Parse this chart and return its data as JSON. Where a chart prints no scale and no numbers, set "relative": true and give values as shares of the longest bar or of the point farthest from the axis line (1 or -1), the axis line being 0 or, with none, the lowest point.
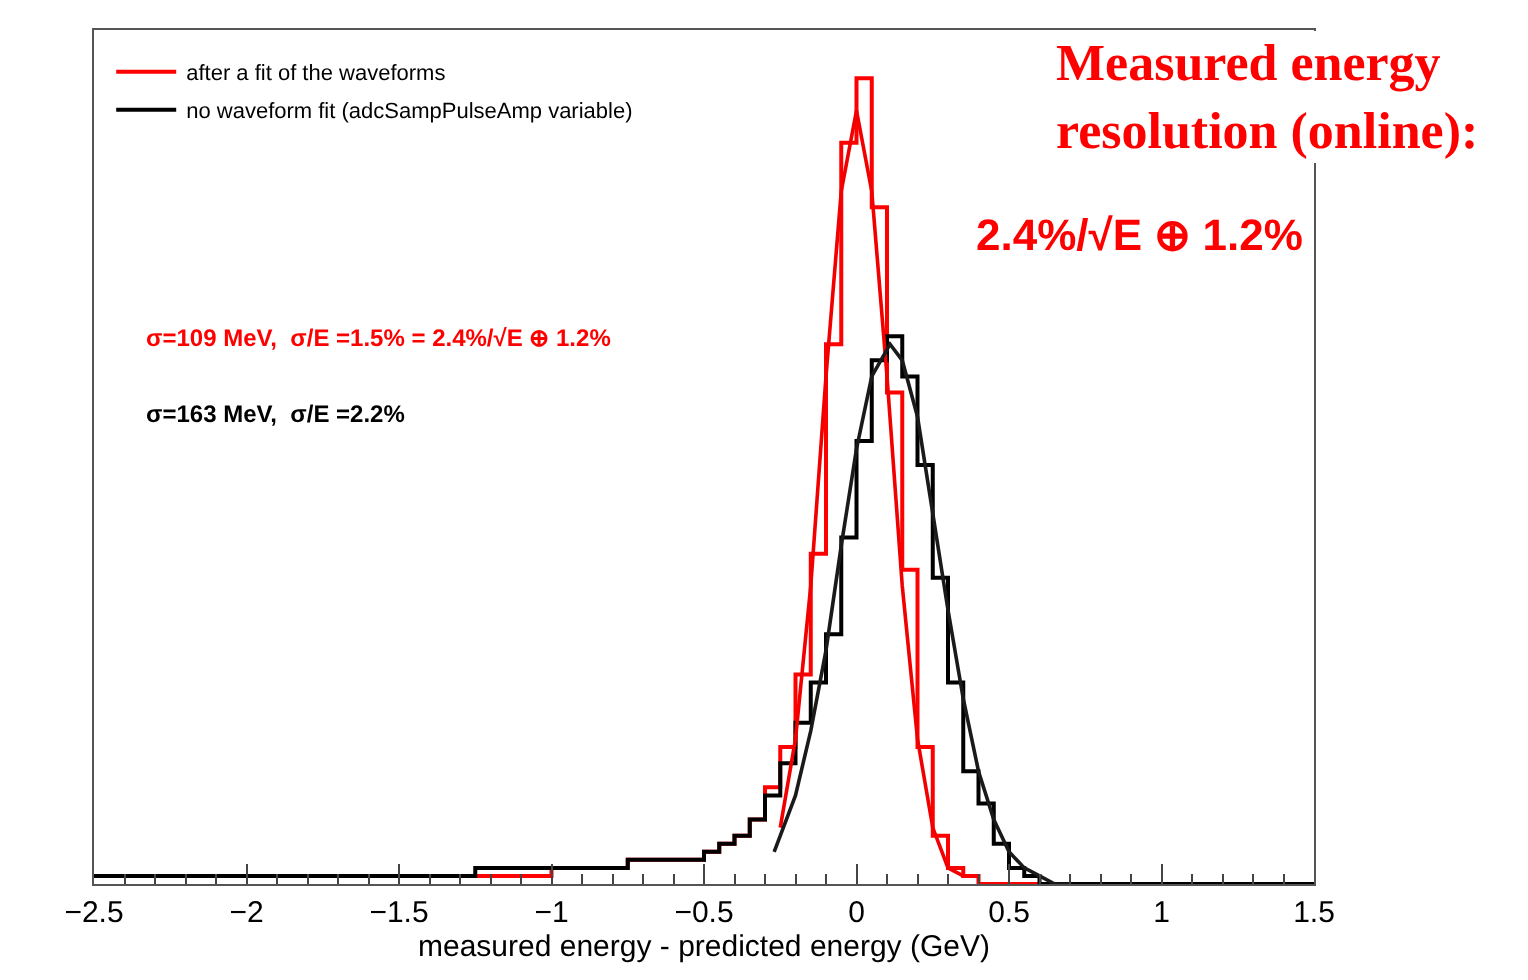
{
  "chart_data": {
    "type": "histogram",
    "title": "Measured energy resolution (online):",
    "xlabel": "measured energy - predicted energy (GeV)",
    "relative": true,
    "bins": [
      -2.5,
      -2.25,
      -2.0,
      -1.75,
      -1.5,
      -1.25,
      -1.0,
      -0.75,
      -0.5,
      -0.45,
      -0.4,
      -0.35,
      -0.3,
      -0.25,
      -0.2,
      -0.15,
      -0.1,
      -0.05,
      0.0,
      0.05,
      0.1,
      0.15,
      0.2,
      0.25,
      0.3,
      0.35,
      0.4,
      0.45,
      0.5,
      0.55,
      0.6,
      0.65,
      0.7,
      0.75,
      0.8,
      1.15,
      1.5
    ],
    "series": [
      {
        "name": "after a fit of the waveforms",
        "color": "#ff0000",
        "values": [
          0.01,
          0.01,
          0.01,
          0.01,
          0.01,
          0.01,
          0.02,
          0.03,
          0.04,
          0.05,
          0.06,
          0.08,
          0.12,
          0.17,
          0.26,
          0.41,
          0.67,
          0.92,
          1,
          0.84,
          0.61,
          0.39,
          0.17,
          0.06,
          0.02,
          0.01,
          0,
          0,
          0,
          0,
          0,
          0,
          0,
          0,
          0,
          0
        ]
      },
      {
        "name": "no waveform fit (adcSampPulseAmp variable)",
        "color": "#000000",
        "values": [
          0.01,
          0.01,
          0.01,
          0.01,
          0.01,
          0.02,
          0.02,
          0.03,
          0.04,
          0.05,
          0.06,
          0.08,
          0.11,
          0.15,
          0.2,
          0.25,
          0.31,
          0.43,
          0.55,
          0.65,
          0.68,
          0.63,
          0.52,
          0.38,
          0.25,
          0.14,
          0.1,
          0.05,
          0.02,
          0.01,
          0,
          0,
          0,
          0,
          0,
          0
        ]
      },
      {
        "type": "line",
        "color": "#f20000",
        "x": [
          -0.25,
          -0.2,
          -0.15,
          -0.1,
          -0.05,
          0.0,
          0.05,
          0.1,
          0.15,
          0.2,
          0.25,
          0.3,
          0.35
        ],
        "values": [
          0.07,
          0.18,
          0.37,
          0.63,
          0.86,
          0.96,
          0.86,
          0.63,
          0.37,
          0.18,
          0.07,
          0.02,
          0.01
        ]
      },
      {
        "type": "line",
        "color": "#1a1a1a",
        "x": [
          -0.27,
          -0.2,
          -0.15,
          -0.1,
          -0.05,
          0.0,
          0.05,
          0.11,
          0.15,
          0.2,
          0.25,
          0.3,
          0.35,
          0.4,
          0.45,
          0.5,
          0.55,
          0.6,
          0.65,
          0.7
        ],
        "values": [
          0.04,
          0.11,
          0.19,
          0.29,
          0.42,
          0.54,
          0.63,
          0.67,
          0.65,
          0.58,
          0.46,
          0.34,
          0.23,
          0.14,
          0.08,
          0.04,
          0.02,
          0.01,
          0,
          0
        ]
      }
    ],
    "annotations": [
      "σ=109 MeV,  σ/E =1.5% = 2.4%/√E ⊕ 1.2%",
      "σ=163 MeV,  σ/E =2.2%",
      "2.4%/√E ⊕ 1.2%"
    ],
    "xlim": [
      -2.5,
      1.5
    ],
    "xticks": [
      {
        "value": -2.5,
        "label": "−2.5"
      },
      {
        "value": -2,
        "label": "−2"
      },
      {
        "value": -1.5,
        "label": "−1.5"
      },
      {
        "value": -1,
        "label": "−1"
      },
      {
        "value": -0.5,
        "label": "−0.5"
      },
      0,
      0.5,
      1,
      1.5
    ],
    "legend": "top left"
  }
}
